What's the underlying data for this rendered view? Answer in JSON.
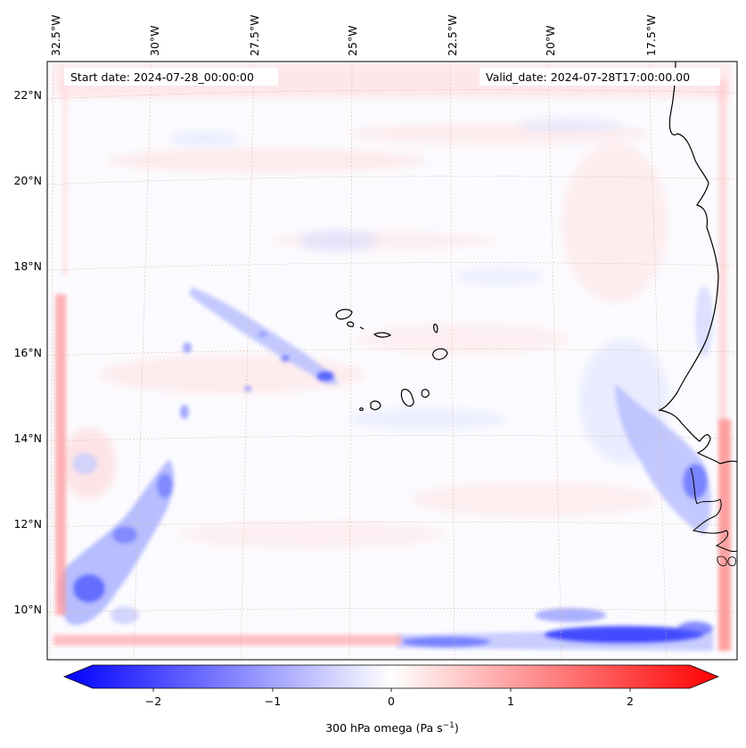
{
  "header": {
    "start_date": "Start date: 2024-07-28_00:00:00",
    "valid_date": "Valid_date: 2024-07-28T17:00:00.00"
  },
  "map": {
    "lon_labels": [
      "32.5°W",
      "30°W",
      "27.5°W",
      "25°W",
      "22.5°W",
      "20°W",
      "17.5°W"
    ],
    "lat_labels": [
      "22°N",
      "20°N",
      "18°N",
      "16°N",
      "14°N",
      "12°N",
      "10°N"
    ],
    "field": "300 hPa omega",
    "colors": {
      "negative": "#0000ff",
      "zero": "#ffffff",
      "positive": "#ff0000",
      "coast": "#000000",
      "grid": "#d9b8a0"
    }
  },
  "colorbar": {
    "ticks": [
      "−2",
      "−1",
      "0",
      "1",
      "2"
    ],
    "label": "300 hPa omega (Pa s",
    "label_sup": "−1",
    "label_end": ")",
    "range": [
      -2.7,
      2.7
    ]
  }
}
